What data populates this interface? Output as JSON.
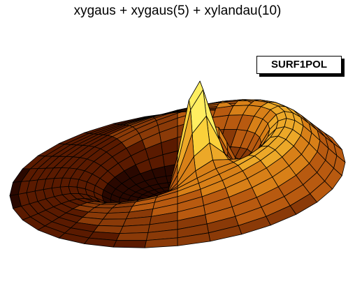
{
  "chart_data": {
    "type": "surface",
    "title": "xygaus + xygaus(5) + xylandau(10)",
    "draw_option": "SURF1POL",
    "coordinate_system": "polar",
    "colormap": [
      "#2a0800",
      "#5a1a00",
      "#8a3a08",
      "#b85a10",
      "#d88018",
      "#eca828",
      "#fad03a",
      "#ffee60"
    ],
    "grid": true,
    "surface": {
      "rings": 20,
      "sectors": 32,
      "components": [
        {
          "name": "xygaus",
          "shape": "peak",
          "angle_deg": 160,
          "radius": 0.35,
          "height": 1.0,
          "width": 0.1
        },
        {
          "name": "xygaus(5)",
          "shape": "peak",
          "angle_deg": 80,
          "radius": 0.22,
          "height": 0.55,
          "width": 0.1
        },
        {
          "name": "xylandau(10)",
          "shape": "ring",
          "ring_radius": 0.65,
          "height": 0.62,
          "peak_angle_deg": 100
        }
      ]
    }
  }
}
